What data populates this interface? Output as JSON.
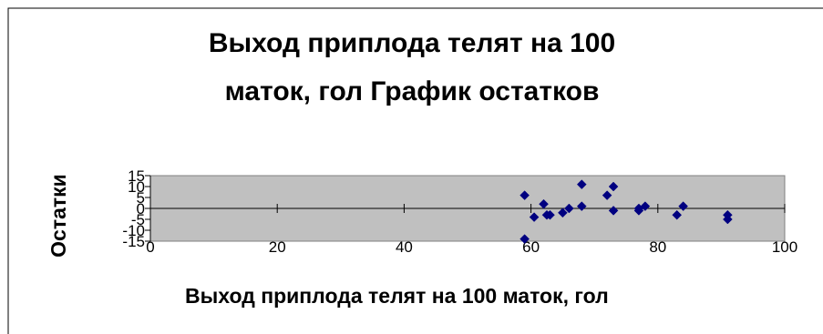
{
  "chart_data": {
    "type": "scatter",
    "title_lines": [
      "Выход приплода телят на 100",
      "маток, гол График остатков"
    ],
    "xlabel": "Выход приплода телят на 100 маток, гол",
    "ylabel": "Остатки",
    "xlim": [
      0,
      100
    ],
    "ylim": [
      -15,
      15
    ],
    "x_ticks": [
      "0",
      "20",
      "40",
      "60",
      "80",
      "100"
    ],
    "y_ticks": [
      "15",
      "10",
      "5",
      "0",
      "-5",
      "-10",
      "-15"
    ],
    "grid": false,
    "legend": "none",
    "x": [
      59,
      59,
      60.5,
      62,
      62.5,
      63,
      65,
      66,
      68,
      68,
      72,
      73,
      73,
      77,
      77,
      78,
      83,
      84,
      91,
      91
    ],
    "y": [
      -14,
      6,
      -4,
      2,
      -3,
      -3,
      -2,
      0,
      11,
      1,
      6,
      10,
      -1,
      0,
      -1,
      1,
      -3,
      1,
      -3,
      -5
    ]
  },
  "colors": {
    "plot_area": "#c0c0c0",
    "marker": "#000080",
    "axis": "#000000"
  }
}
